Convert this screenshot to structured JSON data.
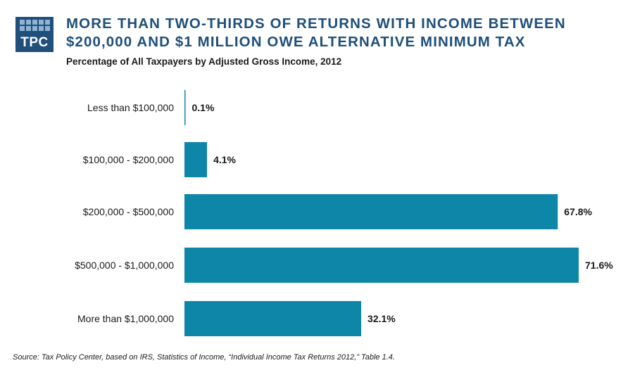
{
  "logo": {
    "text": "TPC"
  },
  "title": "MORE THAN TWO-THIRDS OF RETURNS WITH INCOME BETWEEN $200,000  AND $1 MILLION OWE ALTERNATIVE  MINIMUM TAX",
  "subtitle": "Percentage of All Taxpayers by Adjusted Gross Income, 2012",
  "source": "Source: Tax Policy Center,  based on IRS, Statistics  of Income, “Individual Income Tax Returns 2012,” Table 1.4.",
  "colors": {
    "bar": "#0e86a8",
    "title": "#1f4f7a"
  },
  "chart_data": {
    "type": "bar",
    "orientation": "horizontal",
    "categories": [
      "Less than $100,000",
      "$100,000 - $200,000",
      "$200,000 - $500,000",
      "$500,000 - $1,000,000",
      "More than $1,000,000"
    ],
    "values": [
      0.1,
      4.1,
      67.8,
      71.6,
      32.1
    ],
    "data_labels": [
      "0.1%",
      "4.1%",
      "67.8%",
      "71.6%",
      "32.1%"
    ],
    "title": "MORE THAN TWO-THIRDS OF RETURNS WITH INCOME BETWEEN $200,000  AND $1 MILLION OWE ALTERNATIVE  MINIMUM TAX",
    "subtitle": "Percentage of All Taxpayers by Adjusted Gross Income, 2012",
    "xlim": [
      0,
      100
    ],
    "grid": false
  }
}
